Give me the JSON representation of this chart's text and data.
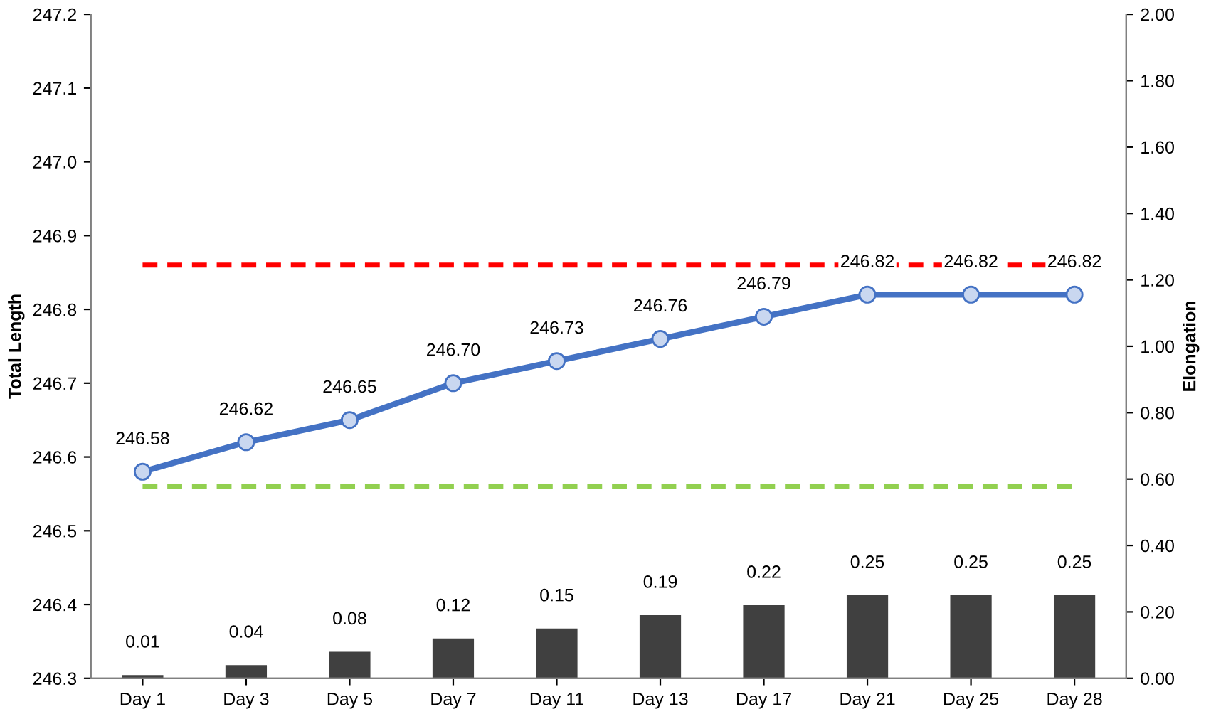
{
  "chart_data": {
    "type": "line",
    "categories": [
      "Day 1",
      "Day 3",
      "Day 5",
      "Day 7",
      "Day 11",
      "Day 13",
      "Day 17",
      "Day 21",
      "Day 25",
      "Day 28"
    ],
    "ylabel": "Total Length",
    "y2label": "Elongation",
    "series": [
      {
        "color": "#4472c4",
        "marker": "circle",
        "line_style": "solid",
        "values": [
          246.58,
          246.62,
          246.65,
          246.7,
          246.73,
          246.76,
          246.79,
          246.82,
          246.82,
          246.82
        ],
        "value_labels": [
          "246.58",
          "246.62",
          "246.65",
          "246.70",
          "246.73",
          "246.76",
          "246.79",
          "246.82",
          "246.82",
          "246.82"
        ]
      },
      {
        "type": "bar",
        "axis": "y2",
        "color": "#404040",
        "values": [
          0.01,
          0.04,
          0.08,
          0.12,
          0.15,
          0.19,
          0.22,
          0.25,
          0.25,
          0.25
        ],
        "value_labels": [
          "0.01",
          "0.04",
          "0.08",
          "0.12",
          "0.15",
          "0.19",
          "0.22",
          "0.25",
          "0.25",
          "0.25"
        ]
      }
    ],
    "ref_lines": [
      {
        "axis": "y",
        "value": 246.86,
        "color": "#ff0000",
        "line_style": "dashed"
      },
      {
        "axis": "y",
        "value": 246.56,
        "color": "#92d050",
        "line_style": "dashed"
      }
    ],
    "ylim": [
      246.3,
      247.2
    ],
    "yticks": [
      {
        "value": 246.3,
        "label": "246.3"
      },
      {
        "value": 246.4,
        "label": "246.4"
      },
      {
        "value": 246.5,
        "label": "246.5"
      },
      {
        "value": 246.6,
        "label": "246.6"
      },
      {
        "value": 246.7,
        "label": "246.7"
      },
      {
        "value": 246.8,
        "label": "246.8"
      },
      {
        "value": 246.9,
        "label": "246.9"
      },
      {
        "value": 247.0,
        "label": "247.0"
      },
      {
        "value": 247.1,
        "label": "247.1"
      },
      {
        "value": 247.2,
        "label": "247.2"
      }
    ],
    "y2lim": [
      0,
      2
    ],
    "y2ticks": [
      {
        "value": 0,
        "label": "0.00"
      },
      {
        "value": 0.2,
        "label": "0.20"
      },
      {
        "value": 0.4,
        "label": "0.40"
      },
      {
        "value": 0.6,
        "label": "0.60"
      },
      {
        "value": 0.8,
        "label": "0.80"
      },
      {
        "value": 1.0,
        "label": "1.00"
      },
      {
        "value": 1.2,
        "label": "1.20"
      },
      {
        "value": 1.4,
        "label": "1.40"
      },
      {
        "value": 1.6,
        "label": "1.60"
      },
      {
        "value": 1.8,
        "label": "1.80"
      },
      {
        "value": 2.0,
        "label": "2.00"
      }
    ],
    "grid": false,
    "legend": false
  }
}
